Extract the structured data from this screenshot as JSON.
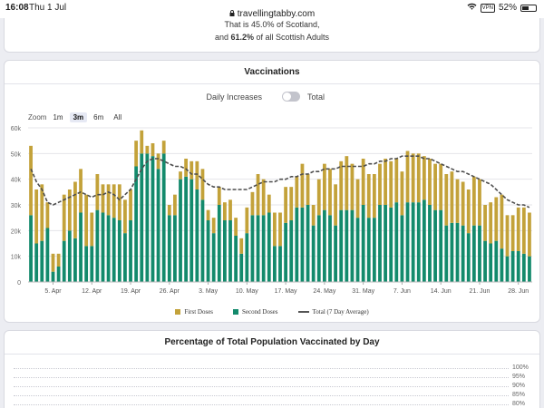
{
  "status_bar": {
    "time": "16:08",
    "date": "Thu 1 Jul",
    "url": "travellingtabby.com",
    "vpn": "VPN",
    "battery": "52%",
    "battery_level": 0.52
  },
  "top_card": {
    "line1": "That is 45.0% of Scotland,",
    "line2_prefix": "and ",
    "line2_value": "61.2%",
    "line2_suffix": " of all Scottish Adults"
  },
  "vaccinations_card": {
    "title": "Vaccinations",
    "toggle_left_label": "Daily Increases",
    "toggle_right_label": "Total",
    "toggle_on": false,
    "zoom_label": "Zoom",
    "zoom_options": [
      "1m",
      "3m",
      "6m",
      "All"
    ],
    "zoom_selected": "3m"
  },
  "pct_card": {
    "title": "Percentage of Total Population Vaccinated by Day",
    "gridlines": [
      "100%",
      "95%",
      "90%",
      "85%",
      "80%"
    ]
  },
  "colors": {
    "first_doses": "#c3a23a",
    "second_doses": "#138a6c",
    "total_line": "#4d4d4d"
  },
  "chart_data": {
    "type": "bar",
    "stacked": true,
    "x": [
      "2021-04-01",
      "2021-04-02",
      "2021-04-03",
      "2021-04-04",
      "2021-04-05",
      "2021-04-06",
      "2021-04-07",
      "2021-04-08",
      "2021-04-09",
      "2021-04-10",
      "2021-04-11",
      "2021-04-12",
      "2021-04-13",
      "2021-04-14",
      "2021-04-15",
      "2021-04-16",
      "2021-04-17",
      "2021-04-18",
      "2021-04-19",
      "2021-04-20",
      "2021-04-21",
      "2021-04-22",
      "2021-04-23",
      "2021-04-24",
      "2021-04-25",
      "2021-04-26",
      "2021-04-27",
      "2021-04-28",
      "2021-04-29",
      "2021-04-30",
      "2021-05-01",
      "2021-05-02",
      "2021-05-03",
      "2021-05-04",
      "2021-05-05",
      "2021-05-06",
      "2021-05-07",
      "2021-05-08",
      "2021-05-09",
      "2021-05-10",
      "2021-05-11",
      "2021-05-12",
      "2021-05-13",
      "2021-05-14",
      "2021-05-15",
      "2021-05-16",
      "2021-05-17",
      "2021-05-18",
      "2021-05-19",
      "2021-05-20",
      "2021-05-21",
      "2021-05-22",
      "2021-05-23",
      "2021-05-24",
      "2021-05-25",
      "2021-05-26",
      "2021-05-27",
      "2021-05-28",
      "2021-05-29",
      "2021-05-30",
      "2021-05-31",
      "2021-06-01",
      "2021-06-02",
      "2021-06-03",
      "2021-06-04",
      "2021-06-05",
      "2021-06-06",
      "2021-06-07",
      "2021-06-08",
      "2021-06-09",
      "2021-06-10",
      "2021-06-11",
      "2021-06-12",
      "2021-06-13",
      "2021-06-14",
      "2021-06-15",
      "2021-06-16",
      "2021-06-17",
      "2021-06-18",
      "2021-06-19",
      "2021-06-20",
      "2021-06-21",
      "2021-06-22",
      "2021-06-23",
      "2021-06-24",
      "2021-06-25",
      "2021-06-26",
      "2021-06-27",
      "2021-06-28",
      "2021-06-29",
      "2021-06-30"
    ],
    "series": [
      {
        "name": "First Doses",
        "values": [
          27000,
          21000,
          22000,
          10000,
          7000,
          5000,
          18000,
          16000,
          22000,
          17000,
          20000,
          13000,
          14000,
          11000,
          12000,
          13000,
          14000,
          13000,
          12000,
          10000,
          9000,
          3000,
          5000,
          6000,
          5000,
          4000,
          8000,
          3000,
          7000,
          7000,
          11000,
          12000,
          4000,
          6000,
          7000,
          7000,
          8000,
          7000,
          6000,
          10000,
          9000,
          16000,
          14000,
          7000,
          13000,
          13000,
          14000,
          13000,
          12000,
          17000,
          12000,
          8000,
          14000,
          18000,
          18000,
          16000,
          19000,
          21000,
          18000,
          15000,
          18000,
          17000,
          17000,
          16000,
          18000,
          18000,
          17000,
          17000,
          20000,
          19000,
          19000,
          17000,
          18000,
          18000,
          18000,
          20000,
          20000,
          17000,
          17000,
          17000,
          19000,
          18000,
          14000,
          16000,
          17000,
          21000,
          16000,
          14000,
          17000,
          18000,
          17000
        ]
      },
      {
        "name": "Second Doses",
        "values": [
          26000,
          15000,
          16000,
          21000,
          4000,
          6000,
          16000,
          20000,
          17000,
          27000,
          14000,
          14000,
          28000,
          27000,
          26000,
          25000,
          24000,
          19000,
          24000,
          45000,
          50000,
          50000,
          49000,
          44000,
          50000,
          26000,
          26000,
          40000,
          41000,
          40000,
          36000,
          32000,
          24000,
          19000,
          30000,
          24000,
          24000,
          18000,
          11000,
          19000,
          26000,
          26000,
          26000,
          27000,
          14000,
          14000,
          23000,
          24000,
          29000,
          29000,
          30000,
          22000,
          26000,
          28000,
          26000,
          22000,
          28000,
          28000,
          28000,
          25000,
          30000,
          25000,
          25000,
          30000,
          30000,
          29000,
          31000,
          26000,
          31000,
          31000,
          31000,
          32000,
          30000,
          28000,
          28000,
          22000,
          23000,
          23000,
          22000,
          19000,
          22000,
          22000,
          16000,
          15000,
          16000,
          13000,
          10000,
          12000,
          12000,
          11000,
          10000
        ]
      }
    ],
    "line": {
      "name": "Total (7 Day Average)",
      "values": [
        44000,
        39000,
        36000,
        31000,
        30000,
        31000,
        32000,
        33000,
        34000,
        35000,
        34000,
        33000,
        34000,
        34000,
        35000,
        34000,
        32000,
        34000,
        36000,
        40000,
        44000,
        47000,
        48000,
        48000,
        47000,
        46000,
        45000,
        45000,
        44000,
        42000,
        42000,
        40000,
        38000,
        37000,
        37000,
        36000,
        36000,
        36000,
        36000,
        36000,
        37000,
        38000,
        39000,
        39000,
        39000,
        40000,
        40000,
        41000,
        41000,
        42000,
        42000,
        43000,
        43000,
        44000,
        44000,
        44000,
        45000,
        45000,
        45000,
        45000,
        45000,
        46000,
        46000,
        47000,
        47000,
        48000,
        48000,
        49000,
        49000,
        49000,
        49000,
        48000,
        48000,
        47000,
        46000,
        45000,
        44000,
        43000,
        43000,
        42000,
        41000,
        40000,
        39000,
        38000,
        36000,
        34000,
        32000,
        31000,
        30000,
        30000,
        29000
      ]
    },
    "xticks": [
      "5. Apr",
      "12. Apr",
      "19. Apr",
      "26. Apr",
      "3. May",
      "10. May",
      "17. May",
      "24. May",
      "31. May",
      "7. Jun",
      "14. Jun",
      "21. Jun",
      "28. Jun"
    ],
    "xtick_dates": [
      "2021-04-05",
      "2021-04-12",
      "2021-04-19",
      "2021-04-26",
      "2021-05-03",
      "2021-05-10",
      "2021-05-17",
      "2021-05-24",
      "2021-05-31",
      "2021-06-07",
      "2021-06-14",
      "2021-06-21",
      "2021-06-28"
    ],
    "yticks": [
      "0",
      "10k",
      "20k",
      "30k",
      "40k",
      "50k",
      "60k"
    ],
    "ylim": [
      0,
      60000
    ],
    "grid": true,
    "legend": "bottom",
    "legend_entries": [
      "First Doses",
      "Second Doses",
      "Total (7 Day Average)"
    ]
  }
}
